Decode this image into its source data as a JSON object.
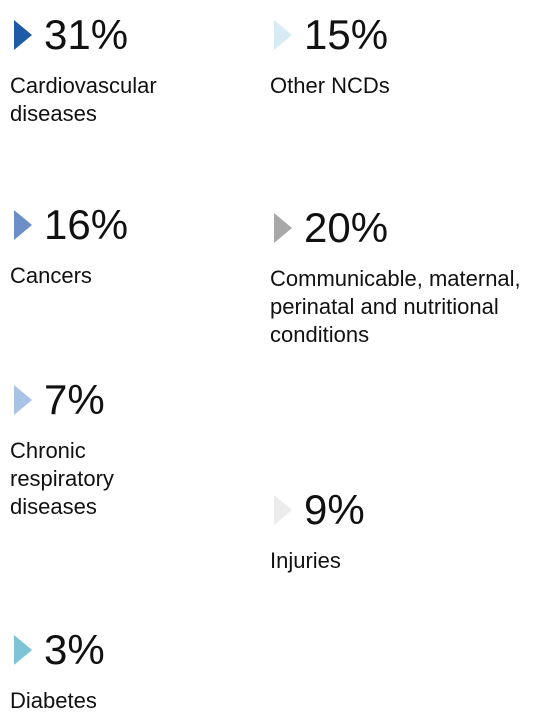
{
  "items": [
    {
      "value_label": "31%",
      "label": "Cardiovascular diseases",
      "color": "#1f5aa6"
    },
    {
      "value_label": "15%",
      "label": "Other NCDs",
      "color": "#d8ebf4"
    },
    {
      "value_label": "16%",
      "label": "Cancers",
      "color": "#6d8fc8"
    },
    {
      "value_label": "20%",
      "label": "Communicable, maternal, perinatal and nutritional conditions",
      "color": "#a8a8a8"
    },
    {
      "value_label": "7%",
      "label": "Chronic respiratory diseases",
      "color": "#a8c3e6"
    },
    {
      "value_label": "9%",
      "label": "Injuries",
      "color": "#ececec"
    },
    {
      "value_label": "3%",
      "label": "Diabetes",
      "color": "#7fc3d6"
    }
  ]
}
